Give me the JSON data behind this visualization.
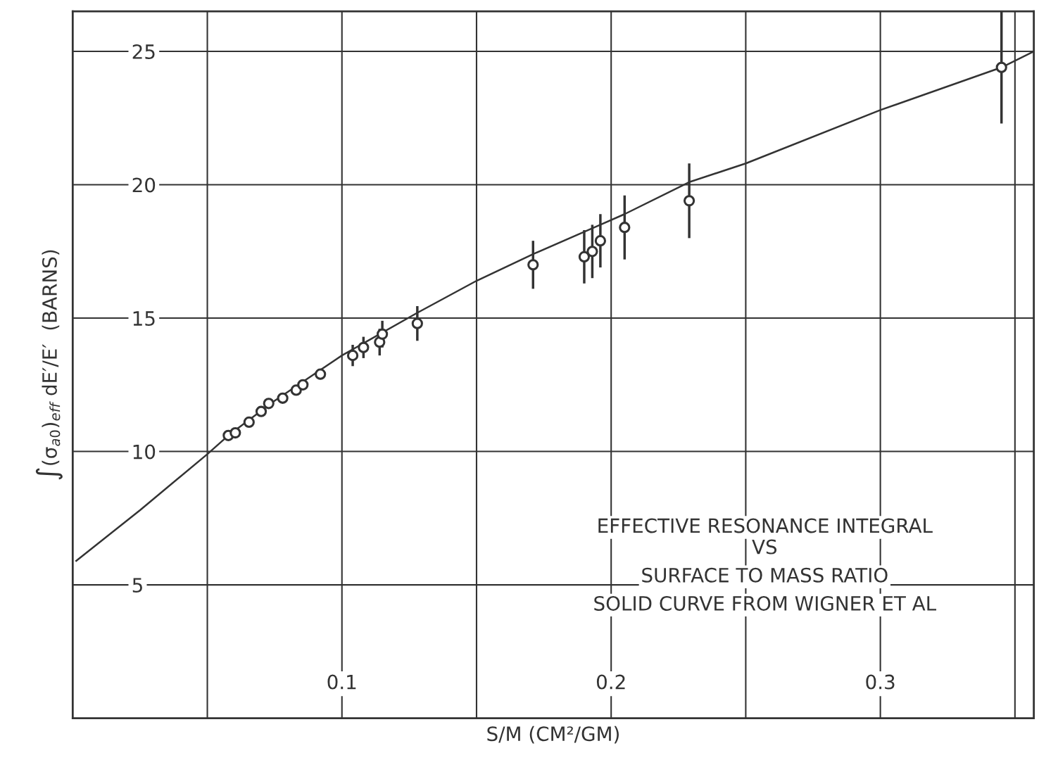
{
  "chart_data": {
    "type": "scatter",
    "xlabel": "S/M (CM²/GM)",
    "ylabel": "∫(σ$_{a0}$)$_{eff}$ dE′/E′  (BARNS)",
    "xlim": [
      0,
      0.357
    ],
    "ylim": [
      0,
      26.5
    ],
    "xticks": [
      {
        "value": 0.05,
        "label": null
      },
      0.1,
      {
        "value": 0.15,
        "label": null
      },
      0.2,
      {
        "value": 0.25,
        "label": null
      },
      0.3,
      {
        "value": 0.35,
        "label": null
      }
    ],
    "yticks": [
      5,
      10,
      15,
      20,
      25
    ],
    "grid": true,
    "annotations": [
      "EFFECTIVE RESONANCE INTEGRAL",
      "VS",
      "SURFACE TO MASS RATIO",
      "SOLID CURVE FROM WIGNER ET AL"
    ],
    "series": [
      {
        "type": "line",
        "color": "#333333",
        "marker": "none",
        "line_style": "solid",
        "x": [
          0.0013,
          0.025,
          0.05,
          0.0578,
          0.075,
          0.1,
          0.128,
          0.15,
          0.171,
          0.196,
          0.205,
          0.229,
          0.25,
          0.3,
          0.345,
          0.357
        ],
        "values": [
          5.9,
          7.8,
          9.9,
          10.6,
          11.9,
          13.6,
          15.2,
          16.4,
          17.4,
          18.5,
          18.9,
          20.1,
          20.8,
          22.8,
          24.4,
          25.0
        ]
      },
      {
        "color": "#333333",
        "marker": "circle",
        "x": [
          0.0578,
          0.0604,
          0.0655,
          0.07,
          0.0728,
          0.078,
          0.083,
          0.0855,
          0.092,
          0.104,
          0.108,
          0.114,
          0.115,
          0.128,
          0.171,
          0.19,
          0.193,
          0.196,
          0.205,
          0.229,
          0.345
        ],
        "values": [
          10.6,
          10.7,
          11.1,
          11.5,
          11.8,
          12.0,
          12.3,
          12.5,
          12.9,
          13.6,
          13.9,
          14.1,
          14.4,
          14.8,
          17.0,
          17.3,
          17.5,
          17.9,
          18.4,
          19.4,
          24.4
        ],
        "errors": [
          null,
          null,
          null,
          null,
          null,
          null,
          null,
          null,
          0.2,
          0.4,
          0.4,
          0.5,
          0.5,
          0.65,
          0.9,
          1.0,
          1.0,
          1.0,
          1.2,
          1.4,
          2.1
        ]
      }
    ]
  }
}
